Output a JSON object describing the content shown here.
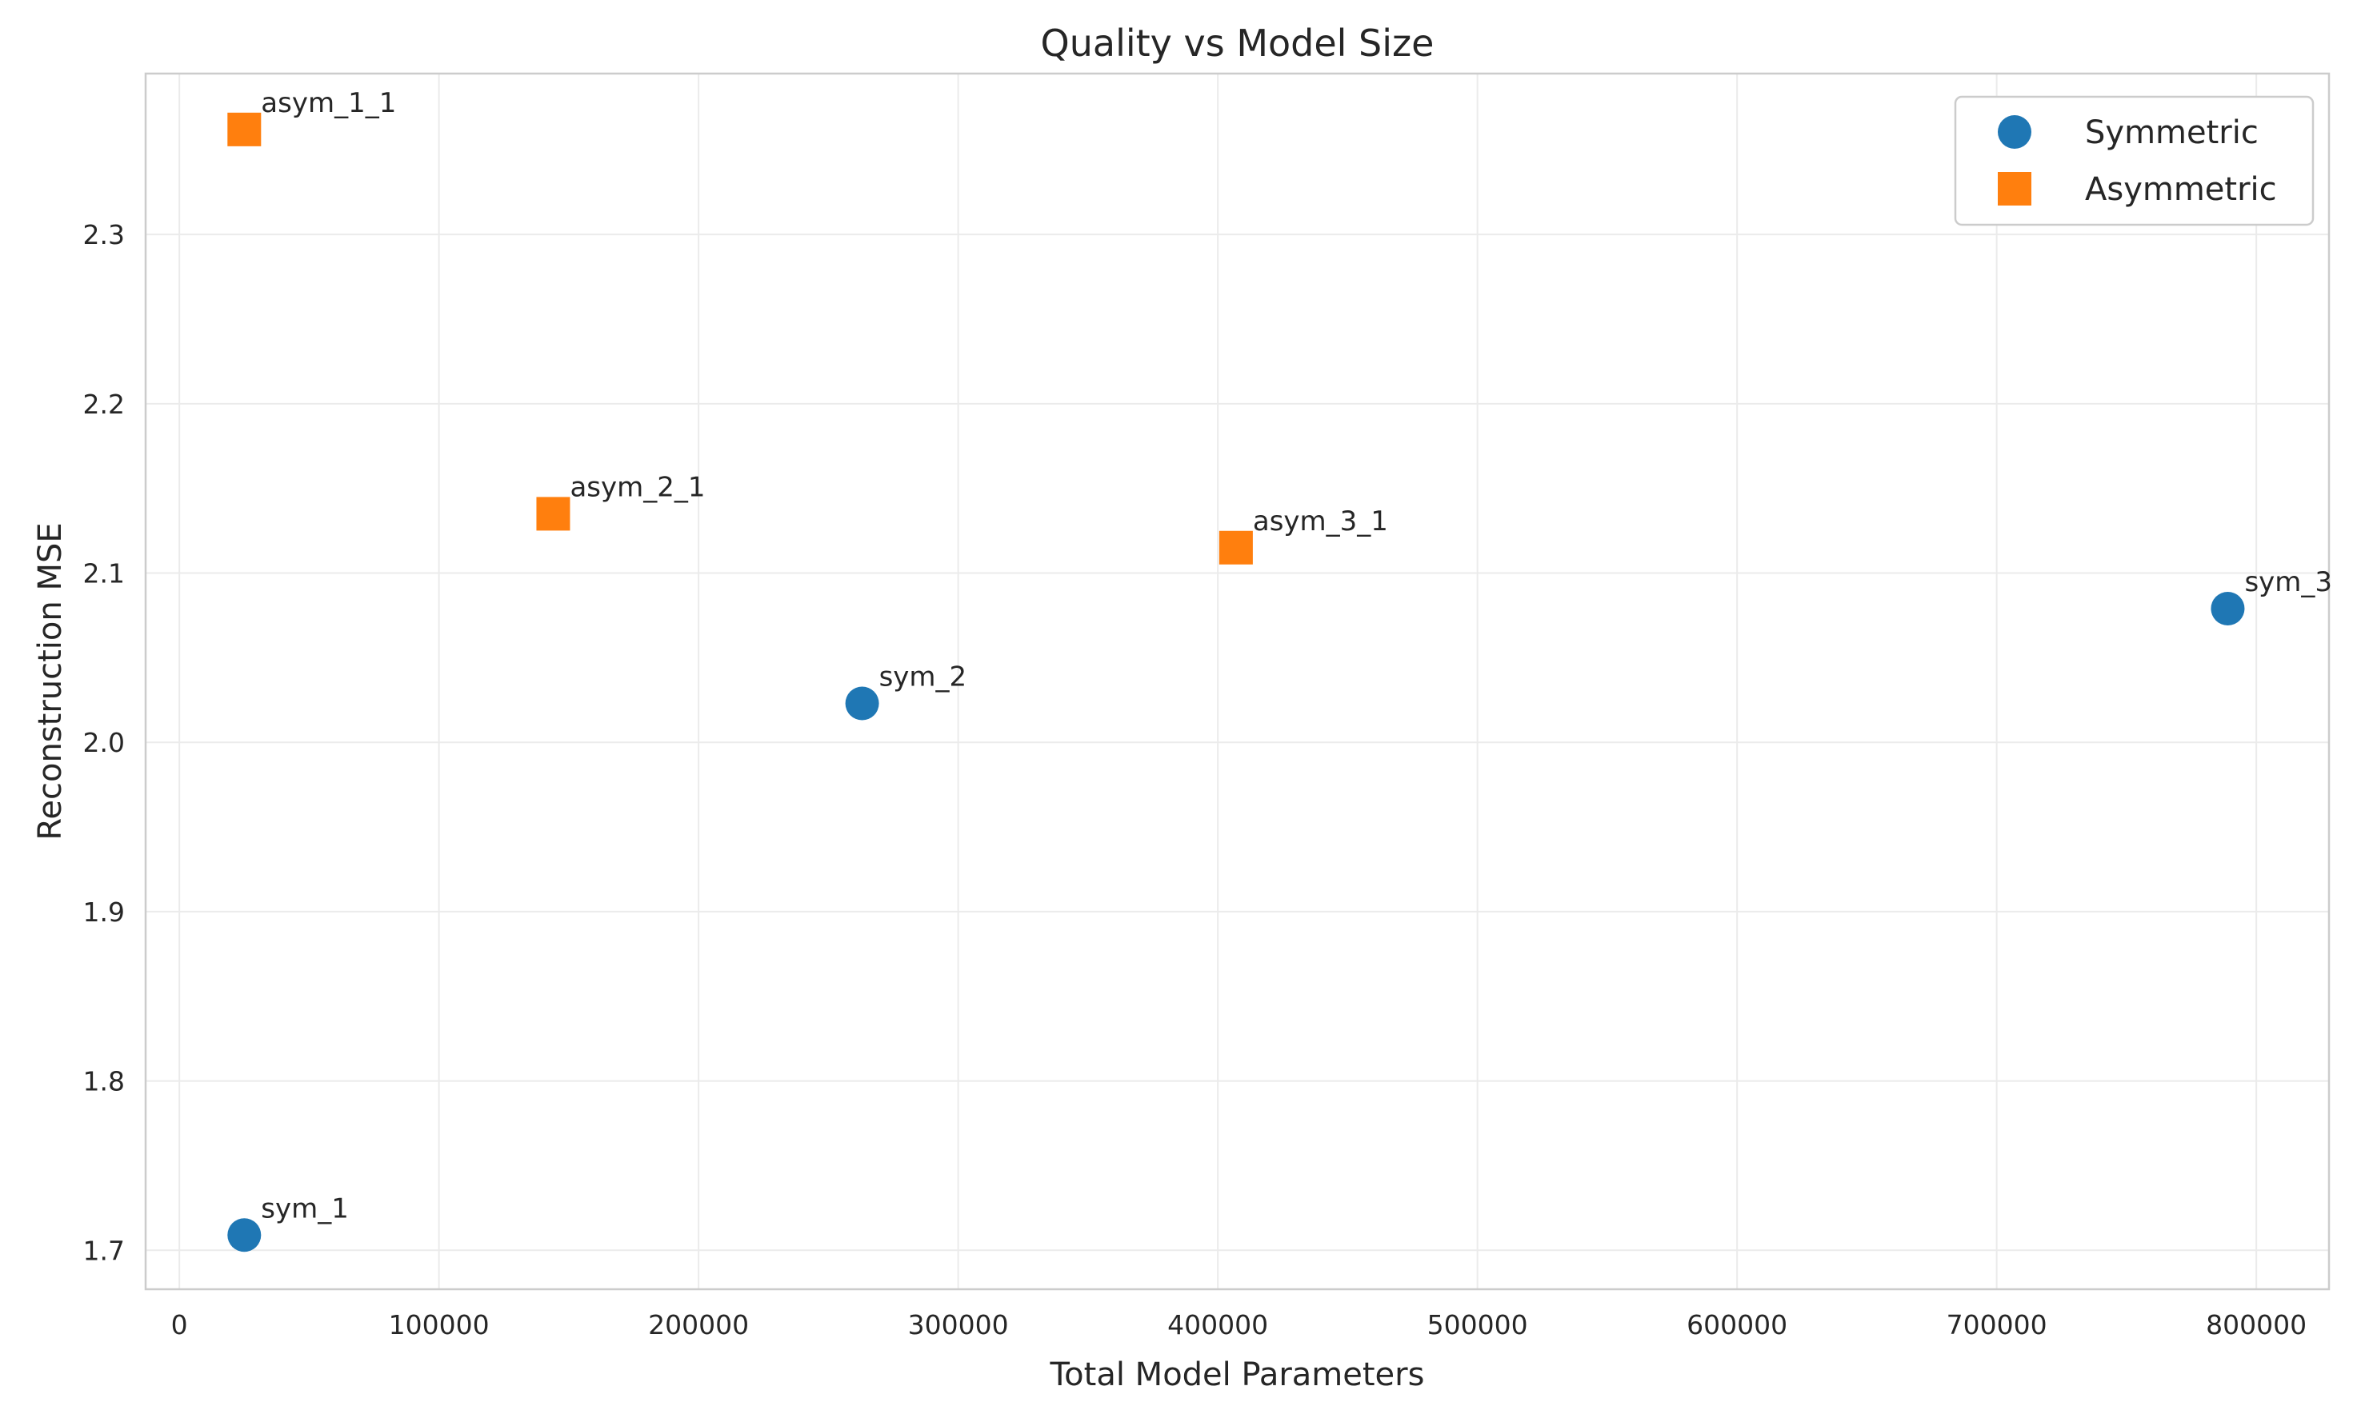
{
  "chart_data": {
    "type": "scatter",
    "title": "Quality vs Model Size",
    "xlabel": "Total Model Parameters",
    "ylabel": "Reconstruction MSE",
    "xlim": [
      -13000,
      828000
    ],
    "ylim": [
      1.677,
      2.395
    ],
    "xticks": [
      0,
      100000,
      200000,
      300000,
      400000,
      500000,
      600000,
      700000,
      800000
    ],
    "xtick_labels": [
      "0",
      "100000",
      "200000",
      "300000",
      "400000",
      "500000",
      "600000",
      "700000",
      "800000"
    ],
    "yticks": [
      1.7,
      1.8,
      1.9,
      2.0,
      2.1,
      2.2,
      2.3
    ],
    "ytick_labels": [
      "1.7",
      "1.8",
      "1.9",
      "2.0",
      "2.1",
      "2.2",
      "2.3"
    ],
    "grid": true,
    "legend": {
      "position": "upper right",
      "entries": [
        "Symmetric",
        "Asymmetric"
      ]
    },
    "series": [
      {
        "name": "Symmetric",
        "marker": "circle",
        "color": "#1f77b4",
        "points": [
          {
            "label": "sym_1",
            "x": 25000,
            "y": 1.709
          },
          {
            "label": "sym_2",
            "x": 263000,
            "y": 2.023
          },
          {
            "label": "sym_3",
            "x": 789000,
            "y": 2.079
          }
        ]
      },
      {
        "name": "Asymmetric",
        "marker": "square",
        "color": "#ff7f0e",
        "points": [
          {
            "label": "asym_1_1",
            "x": 25000,
            "y": 2.362
          },
          {
            "label": "asym_2_1",
            "x": 144000,
            "y": 2.135
          },
          {
            "label": "asym_3_1",
            "x": 407000,
            "y": 2.115
          }
        ]
      }
    ]
  }
}
